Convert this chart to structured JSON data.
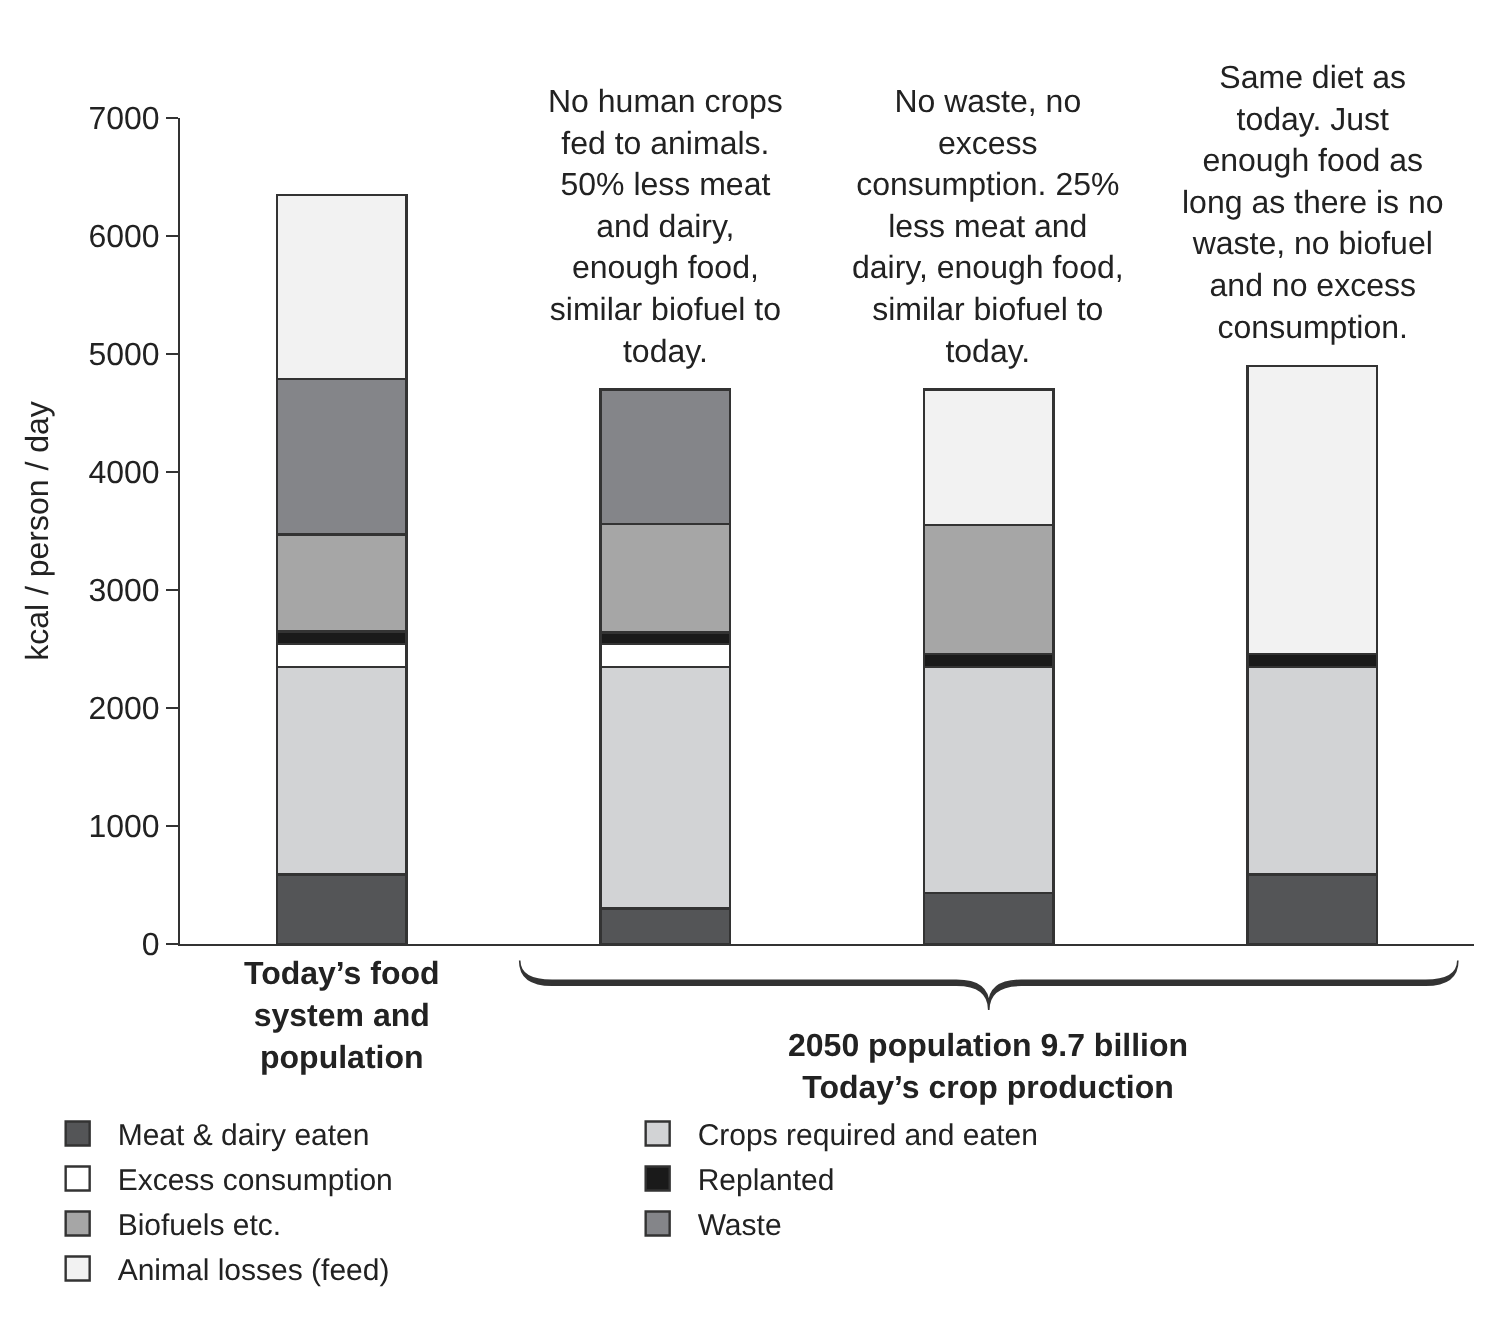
{
  "chart_data": {
    "type": "bar",
    "stacked": true,
    "ylabel": "kcal / person / day",
    "categories": [
      "Today’s food system and population",
      null,
      null,
      null
    ],
    "ylim": [
      0,
      7000
    ],
    "yticks": [
      0,
      1000,
      2000,
      3000,
      4000,
      5000,
      6000,
      7000
    ],
    "grid": false,
    "legend": "bottom",
    "series": [
      {
        "name": "Meat & dairy eaten",
        "color": "#545557",
        "values": [
          590,
          300,
          430,
          590
        ]
      },
      {
        "name": "Crops required and eaten",
        "color": "#d2d3d5",
        "values": [
          1760,
          2050,
          1920,
          1760
        ]
      },
      {
        "name": "Excess consumption",
        "color": "#ffffff",
        "values": [
          190,
          190,
          null,
          null
        ]
      },
      {
        "name": "Replanted",
        "color": "#1a1a1a",
        "values": [
          110,
          100,
          110,
          110
        ]
      },
      {
        "name": "Biofuels etc.",
        "color": "#a6a6a6",
        "values": [
          820,
          920,
          1090,
          null
        ]
      },
      {
        "name": "Waste",
        "color": "#848589",
        "values": [
          1320,
          1140,
          null,
          null
        ]
      },
      {
        "name": "Animal losses (feed)",
        "color": "#f2f2f2",
        "values": [
          1560,
          null,
          1150,
          2440
        ]
      }
    ],
    "annotations": [
      "No human crops\nfed to animals.\n50% less meat\nand dairy,\nenough food,\nsimilar biofuel to\ntoday.",
      "No waste, no\nexcess\nconsumption. 25%\nless meat and\ndairy, enough food,\nsimilar biofuel to\ntoday.",
      "Same diet as\ntoday. Just\nenough food as\nlong as there is no\nwaste, no biofuel\nand no excess\nconsumption.",
      "2050 population 9.7 billion\nToday’s crop production"
    ]
  }
}
